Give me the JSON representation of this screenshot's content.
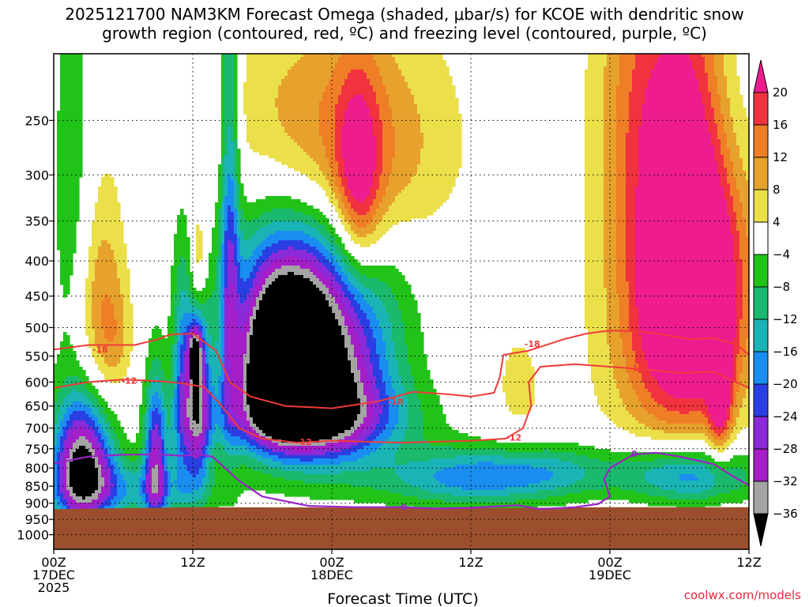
{
  "title_line1": "2025121700 NAM3KM Forecast Omega (shaded, μbar/s) for KCOE with dendritic snow",
  "title_line2": "growth region (contoured, red, ºC) and freezing level (contoured, purple, ºC)",
  "credit": "coolwx.com/models",
  "chart_data": {
    "type": "heatmap",
    "title": "2025121700 NAM3KM Forecast Omega (shaded, μbar/s) for KCOE with dendritic snow growth region (contoured, red, ºC) and freezing level (contoured, purple, ºC)",
    "xlabel": "Forecast Time (UTC)",
    "ylabel": "",
    "x_range_hours": [
      0,
      60
    ],
    "y_range_hpa": [
      200,
      1050
    ],
    "y_scale": "log",
    "grid": true,
    "x_ticks": [
      {
        "hour": 0,
        "line1": "00Z",
        "line2": "17DEC",
        "line3": "2025"
      },
      {
        "hour": 12,
        "line1": "12Z",
        "line2": "",
        "line3": ""
      },
      {
        "hour": 24,
        "line1": "00Z",
        "line2": "18DEC",
        "line3": ""
      },
      {
        "hour": 36,
        "line1": "12Z",
        "line2": "",
        "line3": ""
      },
      {
        "hour": 48,
        "line1": "00Z",
        "line2": "19DEC",
        "line3": ""
      },
      {
        "hour": 60,
        "line1": "12Z",
        "line2": "",
        "line3": ""
      }
    ],
    "y_ticks": [
      250,
      300,
      350,
      400,
      450,
      500,
      550,
      600,
      650,
      700,
      750,
      800,
      850,
      900,
      950,
      1000
    ],
    "y_tick_labels": [
      "250",
      "300",
      "350",
      "400",
      "450",
      "500",
      "550",
      "600",
      "650",
      "700",
      "750",
      "800",
      "850",
      "900",
      "950",
      "1000"
    ],
    "colorbar": {
      "units": "μbar/s",
      "tick_labels": [
        "20",
        "16",
        "12",
        "8",
        "4",
        "−4",
        "−8",
        "−12",
        "−16",
        "−20",
        "−24",
        "−28",
        "−32",
        "−36"
      ],
      "tick_values": [
        20,
        16,
        12,
        8,
        4,
        -4,
        -8,
        -12,
        -16,
        -20,
        -24,
        -28,
        -32,
        -36
      ],
      "bins": [
        {
          "lo": 20,
          "hi": 99,
          "color": "#ee1c8e"
        },
        {
          "lo": 16,
          "hi": 20,
          "color": "#f0333f"
        },
        {
          "lo": 12,
          "hi": 16,
          "color": "#ef7f26"
        },
        {
          "lo": 8,
          "hi": 12,
          "color": "#e7a22d"
        },
        {
          "lo": 4,
          "hi": 8,
          "color": "#ebdf4a"
        },
        {
          "lo": -4,
          "hi": 4,
          "color": "#ffffff"
        },
        {
          "lo": -8,
          "hi": -4,
          "color": "#22c319"
        },
        {
          "lo": -12,
          "hi": -8,
          "color": "#1ab96d"
        },
        {
          "lo": -16,
          "hi": -12,
          "color": "#1ab4b6"
        },
        {
          "lo": -20,
          "hi": -16,
          "color": "#1a8ef0"
        },
        {
          "lo": -24,
          "hi": -20,
          "color": "#2a3fe3"
        },
        {
          "lo": -28,
          "hi": -24,
          "color": "#8a2ad8"
        },
        {
          "lo": -32,
          "hi": -28,
          "color": "#a51ec8"
        },
        {
          "lo": -36,
          "hi": -32,
          "color": "#a4a4a4"
        },
        {
          "lo": -99,
          "hi": -36,
          "color": "#000000"
        }
      ]
    },
    "ground_color": "#9b4f2d",
    "ground_top_hpa": [
      [
        0,
        918
      ],
      [
        12,
        912
      ],
      [
        24,
        913
      ],
      [
        36,
        915
      ],
      [
        48,
        912
      ],
      [
        60,
        912
      ]
    ],
    "omega_features": [
      {
        "t": 4.0,
        "p": 480,
        "st": 1.6,
        "sp": 130,
        "v": 13
      },
      {
        "t": 5.5,
        "p": 520,
        "st": 0.9,
        "sp": 60,
        "v": 4
      },
      {
        "t": 1.7,
        "p": 340,
        "st": 1.3,
        "sp": 180,
        "v": -8
      },
      {
        "t": 12.5,
        "p": 400,
        "st": 0.5,
        "sp": 50,
        "v": 12
      },
      {
        "t": 12.2,
        "p": 545,
        "st": 0.4,
        "sp": 35,
        "v": -20
      },
      {
        "t": 12.4,
        "p": 650,
        "st": 0.8,
        "sp": 130,
        "v": -30
      },
      {
        "t": 15.2,
        "p": 360,
        "st": 0.6,
        "sp": 230,
        "v": -18
      },
      {
        "t": 11.0,
        "p": 620,
        "st": 0.6,
        "sp": 160,
        "v": -16
      },
      {
        "t": 2.5,
        "p": 790,
        "st": 1.8,
        "sp": 120,
        "v": -38
      },
      {
        "t": 8.8,
        "p": 770,
        "st": 0.7,
        "sp": 140,
        "v": -26
      },
      {
        "t": 7.0,
        "p": 860,
        "st": 5.0,
        "sp": 60,
        "v": -13
      },
      {
        "t": 22.8,
        "p": 570,
        "st": 4.2,
        "sp": 140,
        "v": -40
      },
      {
        "t": 19.5,
        "p": 560,
        "st": 2.3,
        "sp": 100,
        "v": -38
      },
      {
        "t": 22.0,
        "p": 680,
        "st": 6.0,
        "sp": 60,
        "v": -18
      },
      {
        "t": 21.0,
        "p": 380,
        "st": 5.0,
        "sp": 90,
        "v": -8
      },
      {
        "t": 24.3,
        "p": 300,
        "st": 5.0,
        "sp": 70,
        "v": 12
      },
      {
        "t": 26.3,
        "p": 320,
        "st": 1.4,
        "sp": 80,
        "v": 16
      },
      {
        "t": 20.0,
        "p": 240,
        "st": 6.0,
        "sp": 60,
        "v": 6
      },
      {
        "t": 29.0,
        "p": 260,
        "st": 6.0,
        "sp": 80,
        "v": 5
      },
      {
        "t": 35.0,
        "p": 830,
        "st": 5.5,
        "sp": 55,
        "v": -14
      },
      {
        "t": 42.5,
        "p": 810,
        "st": 5.5,
        "sp": 55,
        "v": -12
      },
      {
        "t": 40.0,
        "p": 620,
        "st": 1.8,
        "sp": 110,
        "v": 5
      },
      {
        "t": 54.5,
        "p": 450,
        "st": 3.5,
        "sp": 170,
        "v": 26
      },
      {
        "t": 53.0,
        "p": 470,
        "st": 5.5,
        "sp": 260,
        "v": 6
      },
      {
        "t": 55.5,
        "p": 300,
        "st": 3.5,
        "sp": 160,
        "v": 10
      },
      {
        "t": 55.0,
        "p": 820,
        "st": 4.0,
        "sp": 60,
        "v": -20
      },
      {
        "t": 57.5,
        "p": 600,
        "st": 0.7,
        "sp": 120,
        "v": 18
      },
      {
        "t": 50.0,
        "p": 220,
        "st": 2.5,
        "sp": 80,
        "v": 6
      },
      {
        "t": 58.5,
        "p": 230,
        "st": 2.0,
        "sp": 90,
        "v": -8
      }
    ],
    "dgz_contours": [
      {
        "label": "-18",
        "color": "#f03a3a",
        "points": [
          [
            0,
            538
          ],
          [
            3,
            530
          ],
          [
            7,
            530
          ],
          [
            9,
            520
          ],
          [
            10,
            512
          ],
          [
            12,
            510
          ],
          [
            14,
            540
          ],
          [
            15.2,
            600
          ],
          [
            17,
            630
          ],
          [
            20,
            650
          ],
          [
            24,
            655
          ],
          [
            28,
            640
          ],
          [
            31,
            620
          ],
          [
            34,
            625
          ],
          [
            36,
            630
          ],
          [
            38,
            622
          ],
          [
            38.5,
            590
          ],
          [
            38.8,
            548
          ],
          [
            41,
            540
          ],
          [
            44,
            520
          ],
          [
            46,
            510
          ],
          [
            48,
            505
          ],
          [
            50,
            506
          ],
          [
            52,
            510
          ],
          [
            55,
            520
          ],
          [
            57,
            518
          ],
          [
            59,
            530
          ],
          [
            60,
            548
          ]
        ],
        "label_pos": [
          4.0,
          538
        ]
      },
      {
        "label": "-18",
        "color": "#f03a3a",
        "points": [],
        "label_pos": [
          41.3,
          528
        ]
      },
      {
        "label": "-18",
        "color": "#f03a3a",
        "points": [],
        "label_pos": [
          29.5,
          640
        ]
      },
      {
        "label": "-12",
        "color": "#f03a3a",
        "points": [
          [
            0,
            612
          ],
          [
            3,
            600
          ],
          [
            6,
            595
          ],
          [
            9,
            598
          ],
          [
            11,
            602
          ],
          [
            13,
            610
          ],
          [
            14.5,
            650
          ],
          [
            16,
            700
          ],
          [
            18,
            725
          ],
          [
            21,
            735
          ],
          [
            24,
            730
          ],
          [
            30,
            735
          ],
          [
            36,
            730
          ],
          [
            39,
            725
          ],
          [
            40.5,
            700
          ],
          [
            41.2,
            650
          ],
          [
            41,
            600
          ],
          [
            42,
            570
          ],
          [
            45,
            565
          ],
          [
            48,
            570
          ],
          [
            51,
            575
          ],
          [
            54,
            582
          ],
          [
            57,
            580
          ],
          [
            60,
            612
          ]
        ],
        "label_pos": [
          6.5,
          597
        ]
      },
      {
        "label": "-12",
        "color": "#f03a3a",
        "points": [],
        "label_pos": [
          21.6,
          733
        ]
      },
      {
        "label": "-12",
        "color": "#f03a3a",
        "points": [],
        "label_pos": [
          39.7,
          722
        ]
      },
      {
        "label": "-12",
        "color": "#f03a3a",
        "points": [],
        "label_pos": [
          50.3,
          572
        ]
      }
    ],
    "freezing_contours": [
      {
        "label": "0",
        "color": "#9b23c8",
        "points": [
          [
            0,
            788
          ],
          [
            3,
            770
          ],
          [
            6,
            765
          ],
          [
            9,
            764
          ],
          [
            11,
            768
          ],
          [
            12.5,
            765
          ],
          [
            13.7,
            770
          ],
          [
            16,
            835
          ],
          [
            18,
            880
          ],
          [
            22,
            908
          ],
          [
            26,
            912
          ],
          [
            30,
            912
          ],
          [
            33,
            916
          ],
          [
            36,
            914
          ],
          [
            40,
            906
          ],
          [
            42,
            918
          ],
          [
            45,
            912
          ],
          [
            47,
            902
          ],
          [
            48,
            880
          ],
          [
            47.5,
            830
          ],
          [
            48,
            800
          ],
          [
            50,
            765
          ],
          [
            52,
            760
          ],
          [
            54,
            770
          ],
          [
            57,
            790
          ],
          [
            58.5,
            820
          ],
          [
            60,
            848
          ]
        ],
        "label_pos": [
          12.3,
          768
        ]
      },
      {
        "label": "0",
        "color": "#9b23c8",
        "points": [],
        "label_pos": [
          30.2,
          912
        ]
      },
      {
        "label": "0",
        "color": "#9b23c8",
        "points": [],
        "label_pos": [
          50.1,
          762
        ]
      }
    ]
  }
}
